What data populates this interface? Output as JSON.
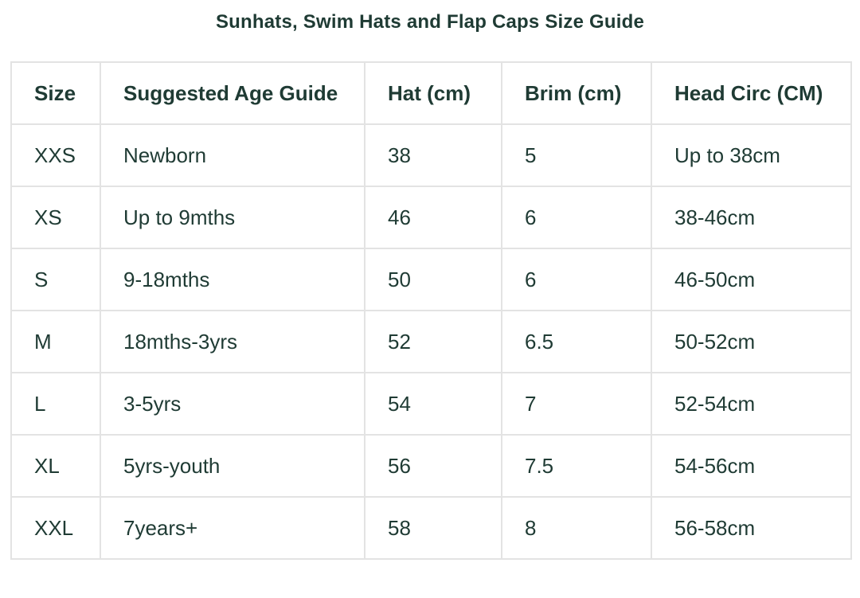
{
  "title": "Sunhats, Swim Hats and Flap Caps Size Guide",
  "table": {
    "headers": [
      "Size",
      "Suggested Age Guide",
      "Hat (cm)",
      "Brim (cm)",
      "Head Circ (CM)"
    ],
    "rows": [
      [
        "XXS",
        "Newborn",
        "38",
        "5",
        "Up to 38cm"
      ],
      [
        "XS",
        "Up to 9mths",
        "46",
        "6",
        "38-46cm"
      ],
      [
        "S",
        "9-18mths",
        "50",
        "6",
        "46-50cm"
      ],
      [
        "M",
        "18mths-3yrs",
        "52",
        "6.5",
        "50-52cm"
      ],
      [
        "L",
        "3-5yrs",
        "54",
        "7",
        "52-54cm"
      ],
      [
        "XL",
        "5yrs-youth",
        "56",
        "7.5",
        "54-56cm"
      ],
      [
        "XXL",
        "7years+",
        "58",
        "8",
        "56-58cm"
      ]
    ]
  },
  "colors": {
    "text": "#1f3b34",
    "border": "#e3e3e3",
    "background": "#ffffff"
  }
}
